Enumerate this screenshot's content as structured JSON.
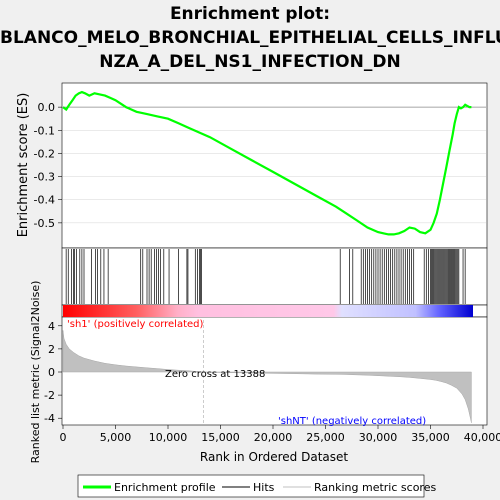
{
  "title_lines": [
    "Enrichment plot:",
    "BLANCO_MELO_BRONCHIAL_EPITHELIAL_CELLS_INFLUE",
    "NZA_A_DEL_NS1_INFECTION_DN"
  ],
  "colors": {
    "enrichment_line": "#00ff00",
    "hits": "#000000",
    "metric_fill": "#c0c0c0",
    "pos_label": "#ff0000",
    "neg_label": "#0000ff",
    "zero_cross_line": "#c0c0c0"
  },
  "chart_data": [
    {
      "type": "line",
      "name": "enrichment-profile",
      "ylabel": "Enrichment score (ES)",
      "xlim": [
        0,
        40000
      ],
      "ylim": [
        -0.6,
        0.1
      ],
      "yticks": [
        0.0,
        -0.1,
        -0.2,
        -0.3,
        -0.4,
        -0.5
      ],
      "x": [
        0,
        300,
        600,
        900,
        1200,
        1500,
        1800,
        2100,
        2500,
        3000,
        3500,
        4000,
        4500,
        5000,
        5500,
        6000,
        6500,
        7000,
        7500,
        8000,
        9000,
        10000,
        11000,
        12000,
        13000,
        14000,
        16000,
        18000,
        20000,
        22000,
        24000,
        26000,
        27000,
        28000,
        29000,
        30000,
        30500,
        31000,
        31500,
        32000,
        32500,
        33000,
        33500,
        34000,
        34500,
        35000,
        35300,
        35600,
        35900,
        36200,
        36500,
        36800,
        37100,
        37300,
        37500,
        37700,
        37900,
        38100,
        38300,
        38500,
        38700,
        38900
      ],
      "y": [
        0.0,
        -0.01,
        0.01,
        0.03,
        0.05,
        0.06,
        0.065,
        0.06,
        0.05,
        0.06,
        0.055,
        0.05,
        0.04,
        0.03,
        0.015,
        0.0,
        -0.01,
        -0.02,
        -0.025,
        -0.03,
        -0.04,
        -0.05,
        -0.07,
        -0.09,
        -0.11,
        -0.13,
        -0.18,
        -0.23,
        -0.28,
        -0.33,
        -0.38,
        -0.43,
        -0.46,
        -0.49,
        -0.52,
        -0.54,
        -0.545,
        -0.55,
        -0.55,
        -0.545,
        -0.535,
        -0.52,
        -0.525,
        -0.54,
        -0.545,
        -0.53,
        -0.5,
        -0.46,
        -0.4,
        -0.33,
        -0.26,
        -0.19,
        -0.12,
        -0.07,
        -0.03,
        0.0,
        -0.005,
        0.0,
        0.01,
        0.005,
        0.0,
        0.0
      ],
      "hits": [
        300,
        500,
        800,
        1000,
        1100,
        1300,
        1600,
        1800,
        2000,
        2700,
        3100,
        3300,
        3600,
        3900,
        4300,
        7400,
        7600,
        8000,
        8200,
        8400,
        8700,
        8900,
        9100,
        9300,
        9600,
        10100,
        11000,
        11800,
        11900,
        12600,
        12800,
        13000,
        13100,
        13200,
        26400,
        27300,
        27600,
        28400,
        28600,
        28800,
        29000,
        29200,
        29400,
        29600,
        29800,
        30000,
        30200,
        30400,
        30600,
        30800,
        31000,
        31200,
        31400,
        31600,
        31800,
        32000,
        32200,
        32400,
        32600,
        32800,
        33000,
        33200,
        33400,
        34400,
        34600,
        34800,
        35000,
        35100,
        35200,
        35300,
        35400,
        35500,
        35600,
        35700,
        35800,
        35900,
        36000,
        36100,
        36200,
        36300,
        36400,
        36500,
        36600,
        36700,
        36800,
        36900,
        37000,
        37100,
        37200,
        37300,
        37400,
        37500,
        37600,
        37700,
        38100,
        38300
      ]
    },
    {
      "type": "area",
      "name": "ranking-metric",
      "xlabel": "Rank in Ordered Dataset",
      "ylabel": "Ranked list metric (Signal2Noise)",
      "xlim": [
        0,
        40000
      ],
      "ylim": [
        -4.5,
        4.5
      ],
      "yticks": [
        4,
        2,
        0,
        -2,
        -4
      ],
      "xticks": [
        0,
        5000,
        10000,
        15000,
        20000,
        25000,
        30000,
        35000,
        40000
      ],
      "xtick_labels": [
        "0",
        "5,000",
        "10,000",
        "15,000",
        "20,000",
        "25,000",
        "30,000",
        "35,000",
        "40,000"
      ],
      "x": [
        0,
        100,
        300,
        600,
        1000,
        1500,
        2000,
        3000,
        4000,
        5000,
        6000,
        7000,
        8000,
        9000,
        10000,
        11000,
        12000,
        13000,
        13388,
        14000,
        16000,
        18000,
        20000,
        22000,
        24000,
        26000,
        27000,
        28000,
        29000,
        30000,
        31000,
        32000,
        33000,
        34000,
        35000,
        35500,
        36000,
        36500,
        37000,
        37500,
        38000,
        38300,
        38600,
        38800,
        38900
      ],
      "values": [
        3.6,
        2.9,
        2.4,
        2.0,
        1.7,
        1.4,
        1.2,
        0.95,
        0.75,
        0.62,
        0.52,
        0.44,
        0.36,
        0.29,
        0.22,
        0.16,
        0.1,
        0.03,
        0.0,
        -0.03,
        -0.06,
        -0.09,
        -0.12,
        -0.15,
        -0.18,
        -0.2,
        -0.22,
        -0.25,
        -0.28,
        -0.32,
        -0.36,
        -0.41,
        -0.47,
        -0.55,
        -0.65,
        -0.72,
        -0.82,
        -0.95,
        -1.15,
        -1.4,
        -1.9,
        -2.4,
        -3.2,
        -4.0,
        -4.4
      ],
      "annotations": {
        "zero_cross": "Zero cross at 13388",
        "zero_cross_x": 13388,
        "pos_label": "'sh1' (positively correlated)",
        "neg_label": "'shNT' (negatively correlated)"
      }
    }
  ],
  "legend": {
    "items": [
      {
        "label": "Enrichment profile",
        "color": "#00ff00",
        "style": "thick"
      },
      {
        "label": "Hits",
        "color": "#000000",
        "style": "thin"
      },
      {
        "label": "Ranking metric scores",
        "color": "#c0c0c0",
        "style": "thin"
      }
    ]
  }
}
